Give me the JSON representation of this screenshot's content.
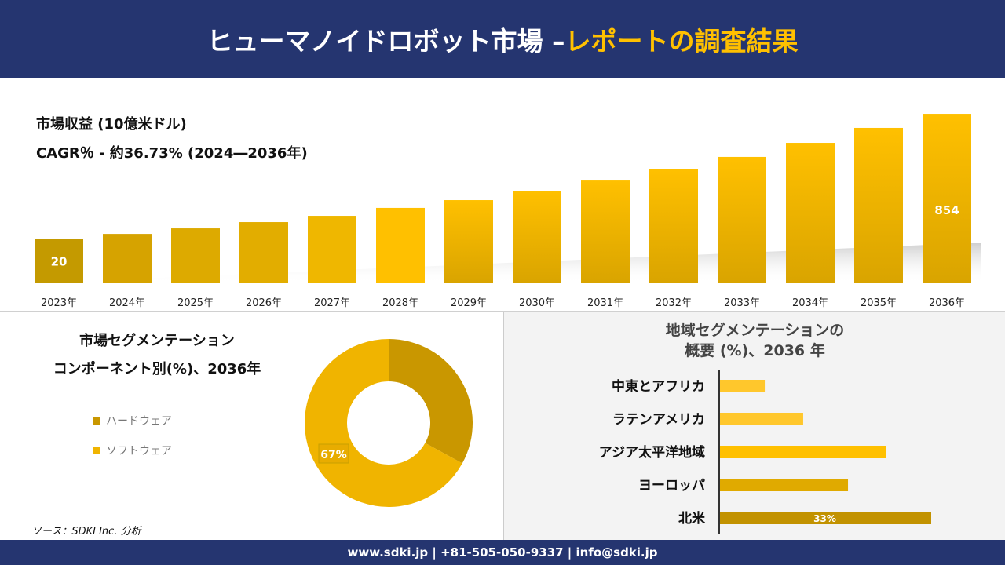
{
  "header": {
    "title_main": "ヒューマノイドロボット市場 –",
    "title_accent": "レポートの調査結果"
  },
  "colors": {
    "navy": "#253570",
    "accent": "#ffc000",
    "hardware": "#c99700",
    "software": "#f0b400"
  },
  "chart_data": [
    {
      "type": "bar",
      "title": "市場収益 (10億米ドル)",
      "subtitle": "CAGR％ - 約36.73% (2024―2036年)",
      "categories": [
        "2023年",
        "2024年",
        "2025年",
        "2026年",
        "2027年",
        "2028年",
        "2029年",
        "2030年",
        "2031年",
        "2032年",
        "2033年",
        "2034年",
        "2035年",
        "2036年"
      ],
      "values": [
        20,
        51,
        88,
        130,
        172,
        225,
        277,
        340,
        408,
        482,
        566,
        660,
        760,
        854
      ],
      "data_labels": {
        "0": "20",
        "13": "854"
      },
      "grid": false
    },
    {
      "type": "pie",
      "title_line1": "市場セグメンテーション",
      "title_line2": "コンポーネント別(%)、2036年",
      "categories": [
        "ハードウェア",
        "ソフトウェア"
      ],
      "values": [
        33,
        67
      ],
      "data_labels": {
        "1": "67%"
      },
      "legend": "left"
    },
    {
      "type": "bar",
      "orientation": "horizontal",
      "title_line1": "地域セグメンテーションの",
      "title_line2": "概要 (%)、2036 年",
      "categories": [
        "中東とアフリカ",
        "ラテンアメリカ",
        "アジア太平洋地域",
        "ヨーロッパ",
        "北米"
      ],
      "values": [
        7,
        13,
        26,
        20,
        33
      ],
      "data_labels": {
        "4": "33%"
      }
    }
  ],
  "source": "ソース：SDKI Inc. 分析",
  "footer": "www.sdki.jp | +81-505-050-9337 | info@sdki.jp"
}
